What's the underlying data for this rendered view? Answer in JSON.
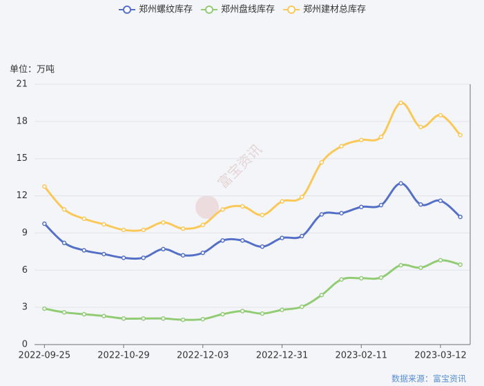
{
  "chart_data": {
    "type": "line",
    "unit_label": "单位：万吨",
    "watermark": "富宝资讯",
    "source": "数据来源：富宝资讯",
    "categories": [
      "2022-09-25",
      null,
      null,
      null,
      "2022-10-29",
      null,
      null,
      null,
      "2022-12-03",
      null,
      null,
      null,
      "2022-12-31",
      null,
      null,
      null,
      "2023-02-11",
      null,
      null,
      null,
      "2023-03-12",
      null
    ],
    "ylim": [
      0,
      21
    ],
    "yticks": [
      0,
      3,
      6,
      9,
      12,
      15,
      18,
      21
    ],
    "grid": true,
    "series": [
      {
        "name": "郑州螺纹库存",
        "color": "#5470c6",
        "values": [
          9.75,
          8.2,
          7.6,
          7.3,
          7.0,
          7.0,
          7.7,
          7.2,
          7.4,
          8.4,
          8.4,
          7.9,
          8.6,
          8.75,
          10.5,
          10.6,
          11.1,
          11.25,
          13.0,
          11.3,
          11.6,
          10.3
        ]
      },
      {
        "name": "郑州盘线库存",
        "color": "#91cc75",
        "values": [
          2.9,
          2.6,
          2.45,
          2.3,
          2.1,
          2.1,
          2.1,
          2.0,
          2.05,
          2.45,
          2.7,
          2.5,
          2.8,
          3.05,
          4.0,
          5.25,
          5.35,
          5.4,
          6.4,
          6.2,
          6.8,
          6.45
        ]
      },
      {
        "name": "郑州建材总库存",
        "color": "#fac858",
        "values": [
          12.75,
          10.9,
          10.15,
          9.7,
          9.25,
          9.25,
          9.85,
          9.35,
          9.65,
          10.9,
          11.15,
          10.45,
          11.55,
          11.9,
          14.7,
          16.0,
          16.5,
          16.75,
          19.5,
          17.55,
          18.5,
          16.9
        ]
      }
    ]
  }
}
